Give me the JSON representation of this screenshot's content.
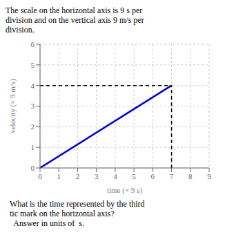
{
  "chart_data": {
    "type": "line",
    "title": "The scale on the horizontal axis is 9 s per\ndivision and on the vertical axis 9 m/s per\ndivision.",
    "xlabel": "time (× 9 s)",
    "ylabel": "velocity (× 9 m/s)",
    "xlim": [
      0,
      9
    ],
    "ylim": [
      0,
      6
    ],
    "xticks": [
      0,
      1,
      2,
      3,
      4,
      5,
      6,
      7,
      8,
      9
    ],
    "yticks": [
      0,
      1,
      2,
      3,
      4,
      5,
      6
    ],
    "grid": true,
    "series": [
      {
        "x": [
          0,
          7
        ],
        "values": [
          0,
          4
        ],
        "color": "#0000CC",
        "line_style": "solid"
      },
      {
        "x": [
          0,
          7
        ],
        "values": [
          4,
          4
        ],
        "color": "black",
        "line_style": "dashed"
      },
      {
        "x": [
          7,
          7
        ],
        "values": [
          0,
          4
        ],
        "color": "black",
        "line_style": "dashed"
      }
    ],
    "annotations": [
      "What is the time represented by the third",
      "tic mark on the horizontal axis?",
      "  Answer in units of  s."
    ]
  }
}
